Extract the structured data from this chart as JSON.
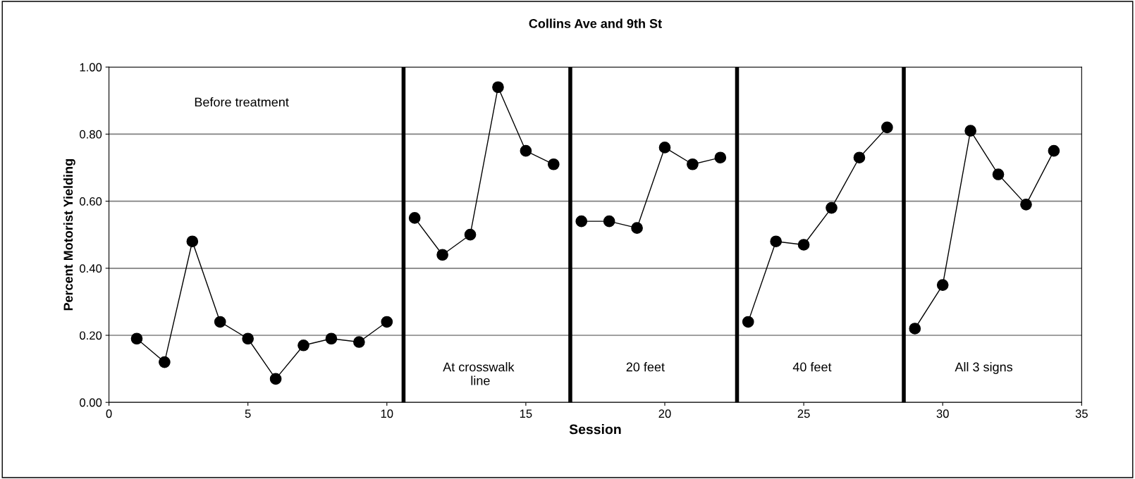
{
  "chart_data": {
    "type": "line",
    "title": "Collins Ave and 9th St",
    "xlabel": "Session",
    "ylabel": "Percent Motorist Yielding",
    "series": [
      {
        "color": "#000000",
        "x": [
          1,
          2,
          3,
          4,
          5,
          6,
          7,
          8,
          9,
          10
        ],
        "values": [
          0.19,
          0.12,
          0.48,
          0.24,
          0.19,
          0.07,
          0.17,
          0.19,
          0.18,
          0.24
        ]
      },
      {
        "color": "#000000",
        "x": [
          11,
          12,
          13,
          14,
          15,
          16
        ],
        "values": [
          0.55,
          0.44,
          0.5,
          0.94,
          0.75,
          0.71
        ]
      },
      {
        "color": "#000000",
        "x": [
          17,
          18,
          19,
          20,
          21,
          22
        ],
        "values": [
          0.54,
          0.54,
          0.52,
          0.76,
          0.71,
          0.73
        ]
      },
      {
        "color": "#000000",
        "x": [
          23,
          24,
          25,
          26,
          27,
          28
        ],
        "values": [
          0.24,
          0.48,
          0.47,
          0.58,
          0.73,
          0.82
        ]
      },
      {
        "color": "#000000",
        "x": [
          29,
          30,
          31,
          32,
          33,
          34
        ],
        "values": [
          0.22,
          0.35,
          0.81,
          0.68,
          0.59,
          0.75
        ]
      }
    ],
    "xlim": [
      0,
      35
    ],
    "xticks": [
      0,
      5,
      10,
      15,
      20,
      25,
      30,
      35
    ],
    "ylim": [
      0,
      1
    ],
    "yticks": [
      {
        "value": 0,
        "label": "0.00"
      },
      {
        "value": 0.2,
        "label": "0.20"
      },
      {
        "value": 0.4,
        "label": "0.40"
      },
      {
        "value": 0.6,
        "label": "0.60"
      },
      {
        "value": 0.8,
        "label": "0.80"
      },
      {
        "value": 1,
        "label": "1.00"
      }
    ],
    "grid": "y",
    "marker": "circle",
    "line_style": "solid",
    "legend": false,
    "ref_lines": [
      {
        "axis": "x",
        "value": 10.6,
        "color": "#000000"
      },
      {
        "axis": "x",
        "value": 16.6,
        "color": "#000000"
      },
      {
        "axis": "x",
        "value": 22.6,
        "color": "#000000"
      },
      {
        "axis": "x",
        "value": 28.6,
        "color": "#000000"
      }
    ],
    "annotations": [
      "Before treatment",
      "At crosswalk\n line",
      "20 feet",
      "40 feet",
      "All 3 signs"
    ]
  }
}
